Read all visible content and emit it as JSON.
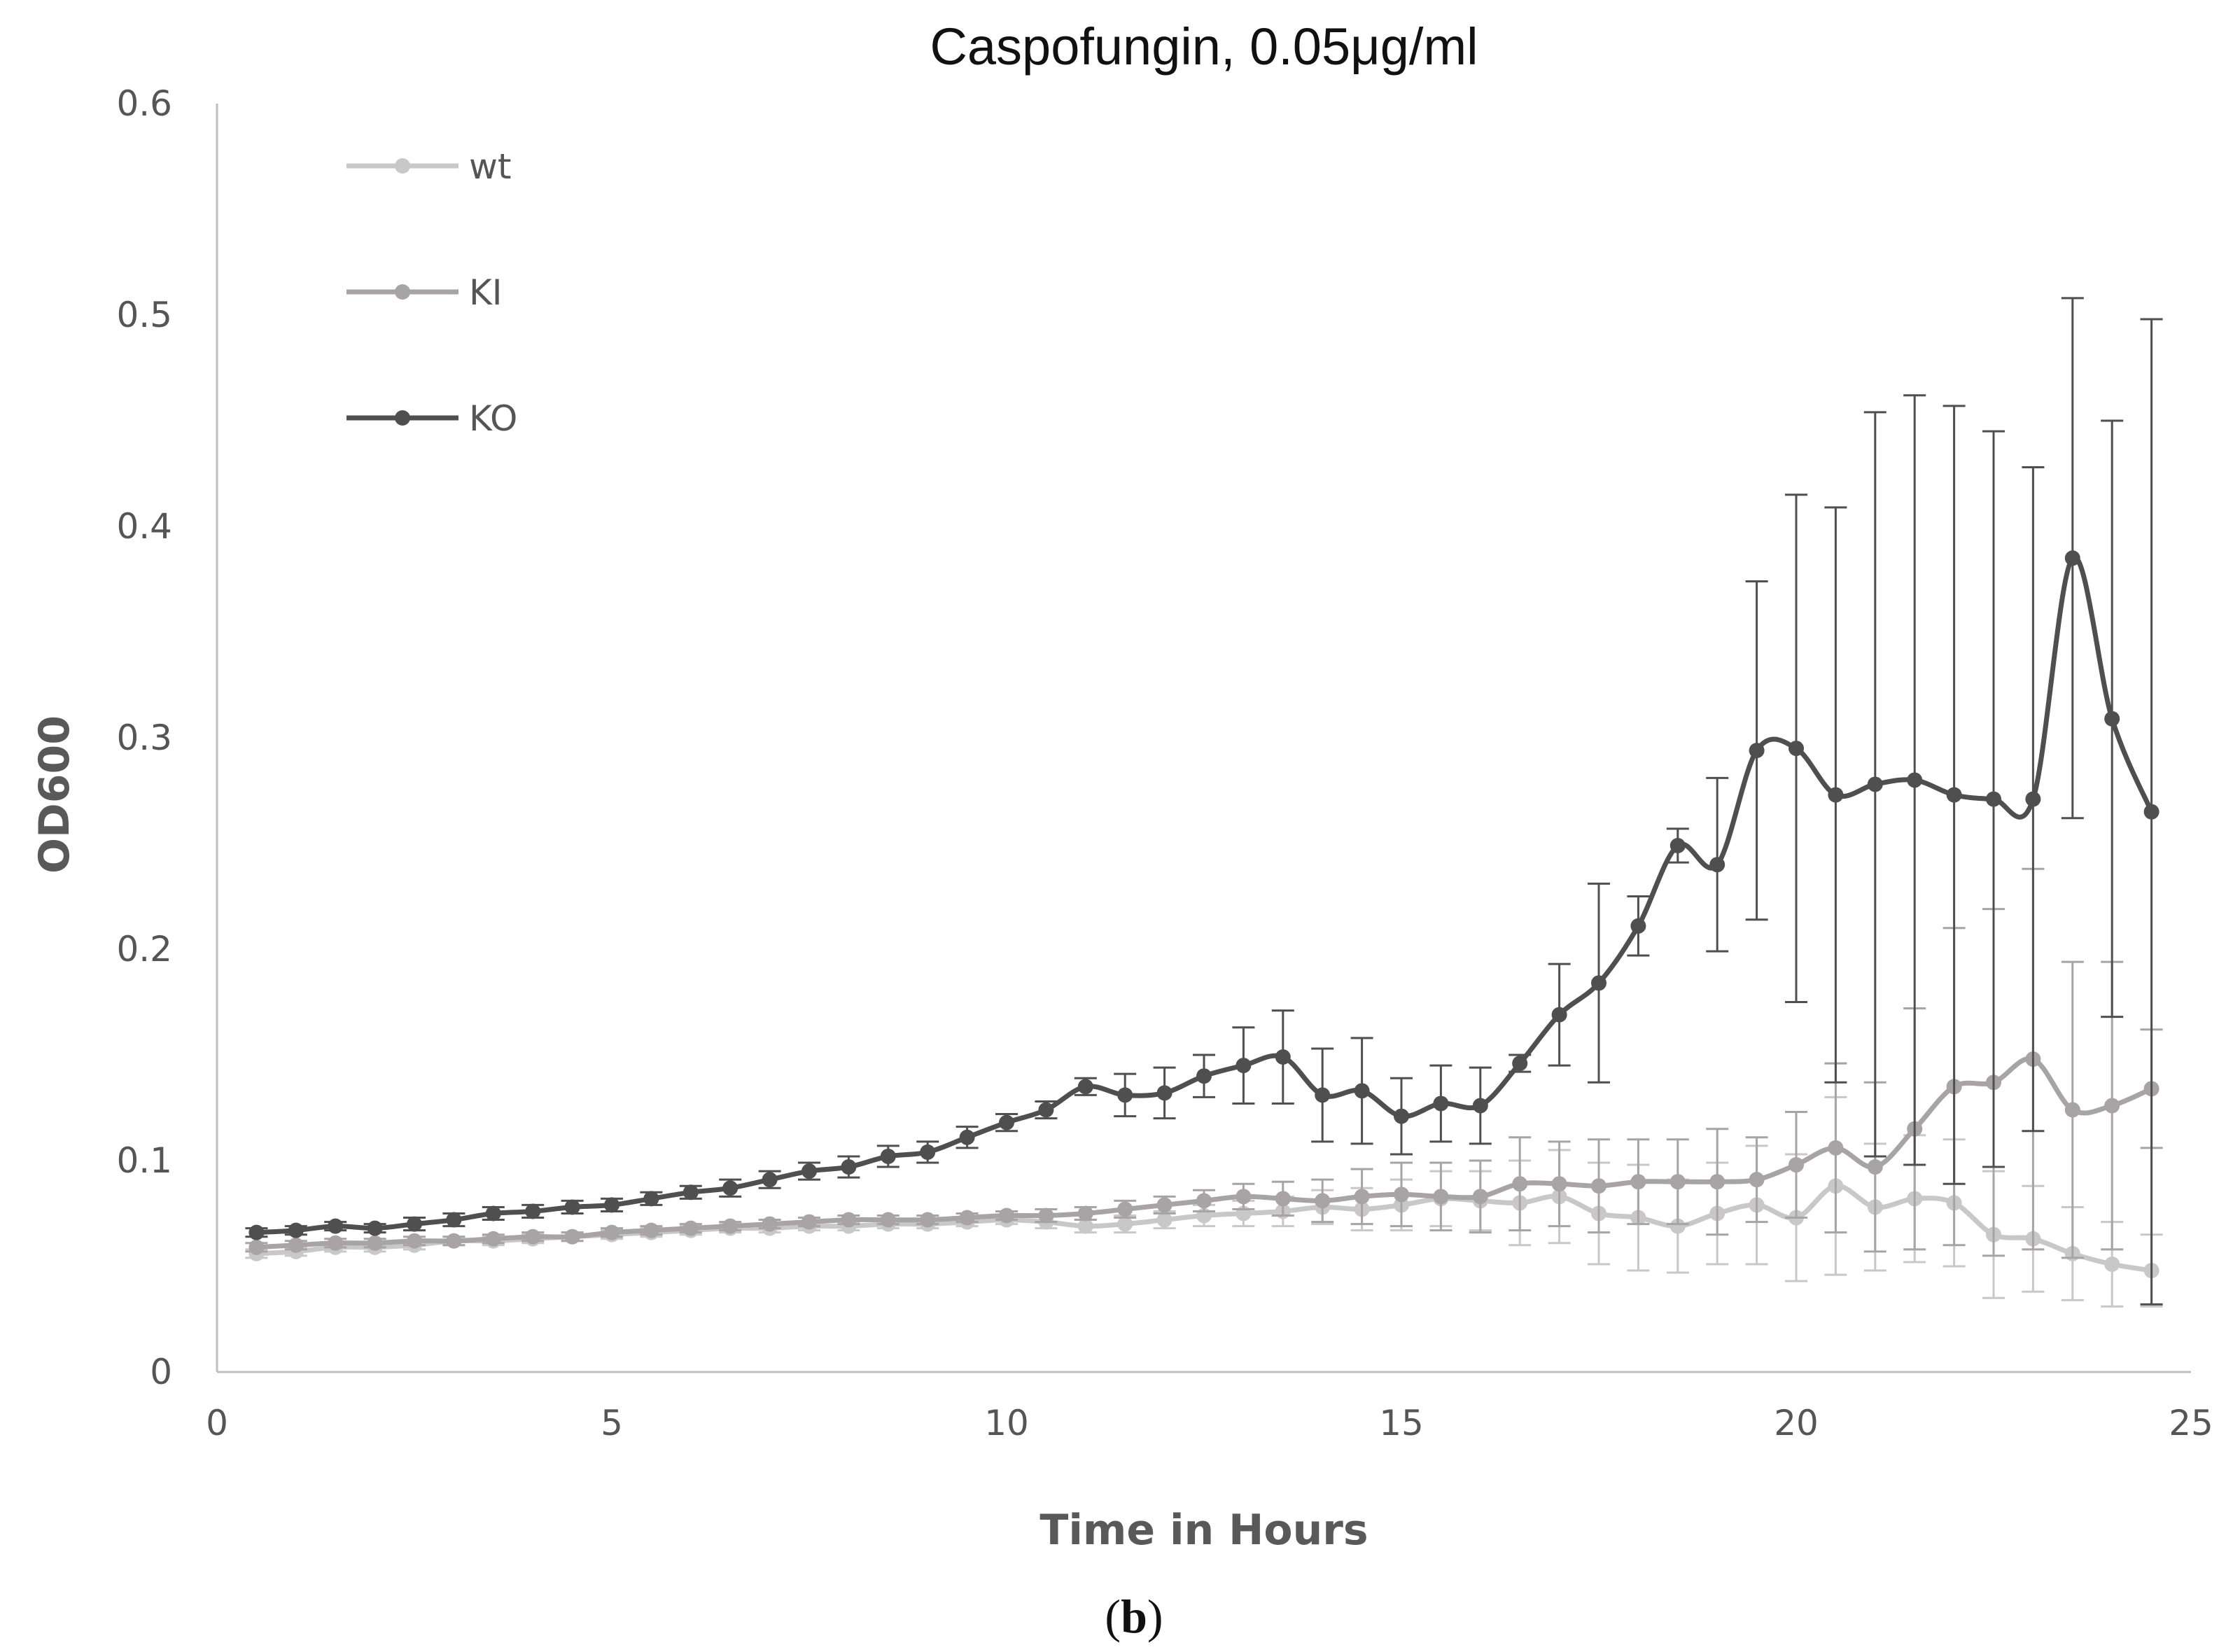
{
  "chart_data": {
    "type": "line",
    "title": "Caspofungin, 0.05μg/ml",
    "xlabel": "Time in Hours",
    "ylabel": "OD600",
    "xlim": [
      0,
      25
    ],
    "ylim": [
      0,
      0.6
    ],
    "xticks": [
      0,
      5,
      10,
      15,
      20,
      25
    ],
    "yticks": [
      0,
      0.1,
      0.2,
      0.3,
      0.4,
      0.5,
      0.6
    ],
    "ytick_labels": [
      "0",
      "0.1",
      "0.2",
      "0.3",
      "0.4",
      "0.5",
      "0.6"
    ],
    "grid": false,
    "legend_position": "top-left",
    "x": [
      0.5,
      1,
      1.5,
      2,
      2.5,
      3,
      3.5,
      4,
      4.5,
      5,
      5.5,
      6,
      6.5,
      7,
      7.5,
      8,
      8.5,
      9,
      9.5,
      10,
      10.5,
      11,
      11.5,
      12,
      12.5,
      13,
      13.5,
      14,
      14.5,
      15,
      15.5,
      16,
      16.5,
      17,
      17.5,
      18,
      18.5,
      19,
      19.5,
      20,
      20.5,
      21,
      21.5,
      22,
      22.5,
      23,
      23.5,
      24,
      24.5
    ],
    "series": [
      {
        "name": "wt",
        "color": "#c8c8c8",
        "values": [
          0.056,
          0.057,
          0.059,
          0.059,
          0.06,
          0.062,
          0.062,
          0.063,
          0.064,
          0.065,
          0.066,
          0.067,
          0.068,
          0.068,
          0.069,
          0.069,
          0.07,
          0.07,
          0.071,
          0.072,
          0.071,
          0.069,
          0.07,
          0.072,
          0.074,
          0.075,
          0.076,
          0.078,
          0.077,
          0.079,
          0.082,
          0.081,
          0.08,
          0.083,
          0.075,
          0.073,
          0.069,
          0.075,
          0.079,
          0.073,
          0.088,
          0.078,
          0.082,
          0.08,
          0.065,
          0.063,
          0.056,
          0.051,
          0.048
        ],
        "errors": [
          0.002,
          0.002,
          0.002,
          0.002,
          0.002,
          0.002,
          0.002,
          0.002,
          0.002,
          0.002,
          0.002,
          0.002,
          0.002,
          0.002,
          0.002,
          0.002,
          0.002,
          0.002,
          0.002,
          0.002,
          0.003,
          0.003,
          0.004,
          0.004,
          0.005,
          0.006,
          0.007,
          0.008,
          0.01,
          0.012,
          0.013,
          0.014,
          0.02,
          0.022,
          0.024,
          0.025,
          0.022,
          0.024,
          0.028,
          0.03,
          0.042,
          0.03,
          0.03,
          0.03,
          0.03,
          0.025,
          0.022,
          0.02,
          0.017
        ]
      },
      {
        "name": "KI",
        "color": "#a8a3a4",
        "values": [
          0.059,
          0.06,
          0.061,
          0.061,
          0.062,
          0.062,
          0.063,
          0.064,
          0.064,
          0.066,
          0.067,
          0.068,
          0.069,
          0.07,
          0.071,
          0.072,
          0.072,
          0.072,
          0.073,
          0.074,
          0.074,
          0.075,
          0.077,
          0.079,
          0.081,
          0.083,
          0.082,
          0.081,
          0.083,
          0.084,
          0.083,
          0.083,
          0.089,
          0.089,
          0.088,
          0.09,
          0.09,
          0.09,
          0.091,
          0.098,
          0.106,
          0.097,
          0.115,
          0.135,
          0.137,
          0.148,
          0.124,
          0.126,
          0.134
        ],
        "errors": [
          0.002,
          0.002,
          0.002,
          0.002,
          0.002,
          0.002,
          0.002,
          0.002,
          0.002,
          0.002,
          0.002,
          0.002,
          0.002,
          0.002,
          0.002,
          0.002,
          0.002,
          0.002,
          0.002,
          0.002,
          0.003,
          0.003,
          0.004,
          0.004,
          0.005,
          0.006,
          0.008,
          0.01,
          0.013,
          0.015,
          0.016,
          0.017,
          0.022,
          0.02,
          0.022,
          0.02,
          0.02,
          0.025,
          0.02,
          0.025,
          0.04,
          0.04,
          0.057,
          0.075,
          0.082,
          0.09,
          0.07,
          0.068,
          0.028
        ]
      },
      {
        "name": "KO",
        "color": "#4f4f4f",
        "values": [
          0.066,
          0.067,
          0.069,
          0.068,
          0.07,
          0.072,
          0.075,
          0.076,
          0.078,
          0.079,
          0.082,
          0.085,
          0.087,
          0.091,
          0.095,
          0.097,
          0.102,
          0.104,
          0.111,
          0.118,
          0.124,
          0.135,
          0.131,
          0.132,
          0.14,
          0.145,
          0.149,
          0.131,
          0.133,
          0.121,
          0.127,
          0.126,
          0.146,
          0.169,
          0.184,
          0.211,
          0.249,
          0.24,
          0.294,
          0.295,
          0.273,
          0.278,
          0.28,
          0.273,
          0.271,
          0.271,
          0.385,
          0.309,
          0.265
        ],
        "errors": [
          0.002,
          0.002,
          0.002,
          0.002,
          0.003,
          0.003,
          0.003,
          0.003,
          0.003,
          0.003,
          0.003,
          0.003,
          0.004,
          0.004,
          0.004,
          0.005,
          0.005,
          0.005,
          0.005,
          0.004,
          0.004,
          0.004,
          0.01,
          0.012,
          0.01,
          0.018,
          0.022,
          0.022,
          0.025,
          0.018,
          0.018,
          0.018,
          0.004,
          0.024,
          0.047,
          0.014,
          0.008,
          0.041,
          0.08,
          0.12,
          0.136,
          0.176,
          0.182,
          0.184,
          0.174,
          0.157,
          0.123,
          0.141,
          0.233
        ]
      }
    ]
  },
  "caption": {
    "open": "(",
    "letter": "b",
    "close": ")"
  }
}
